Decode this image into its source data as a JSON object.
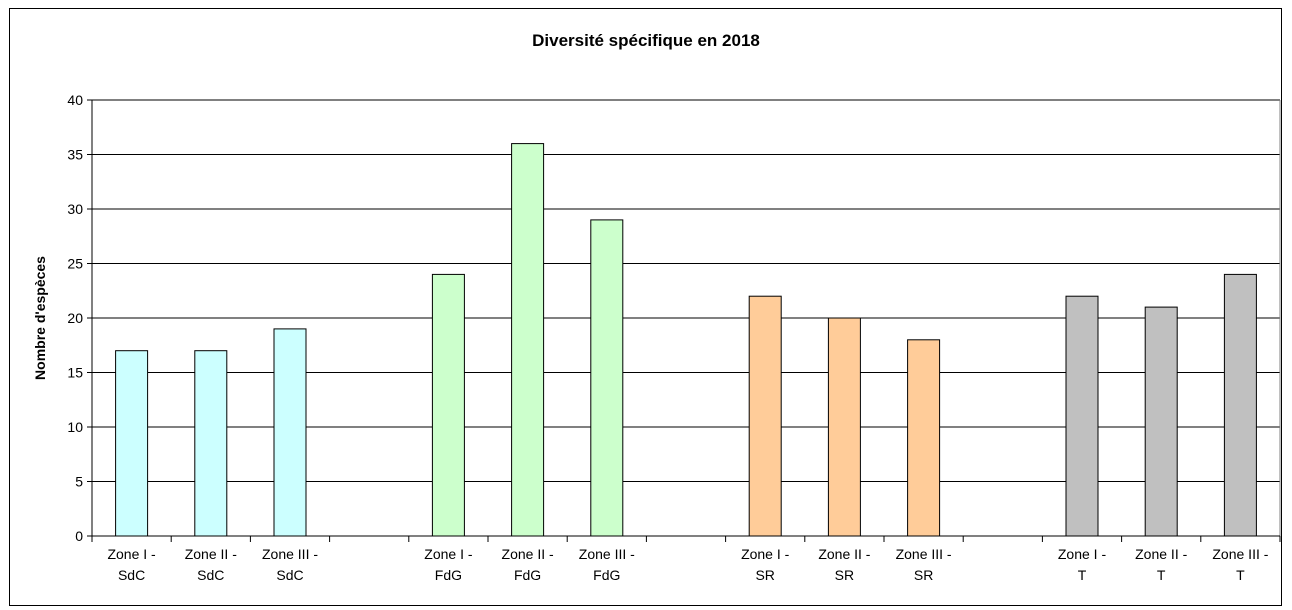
{
  "chart_data": {
    "type": "bar",
    "title": "Diversité spécifique en 2018",
    "xlabel": "",
    "ylabel": "Nombre d'espèces",
    "ylim": [
      0,
      40
    ],
    "yticks": [
      0,
      5,
      10,
      15,
      20,
      25,
      30,
      35,
      40
    ],
    "grid": true,
    "legend": "none",
    "categories": [
      [
        "Zone I -",
        "SdC"
      ],
      [
        "Zone II -",
        "SdC"
      ],
      [
        "Zone III -",
        "SdC"
      ],
      null,
      [
        "Zone I -",
        "FdG"
      ],
      [
        "Zone II -",
        "FdG"
      ],
      [
        "Zone III -",
        "FdG"
      ],
      null,
      [
        "Zone I -",
        "SR"
      ],
      [
        "Zone II -",
        "SR"
      ],
      [
        "Zone III -",
        "SR"
      ],
      null,
      [
        "Zone I -",
        "T"
      ],
      [
        "Zone II -",
        "T"
      ],
      [
        "Zone III -",
        "T"
      ]
    ],
    "values": [
      17,
      17,
      19,
      null,
      24,
      36,
      29,
      null,
      22,
      20,
      18,
      null,
      22,
      21,
      24
    ],
    "colors": [
      "#ccffff",
      "#ccffff",
      "#ccffff",
      null,
      "#ccffcc",
      "#ccffcc",
      "#ccffcc",
      null,
      "#ffcc99",
      "#ffcc99",
      "#ffcc99",
      null,
      "#c0c0c0",
      "#c0c0c0",
      "#c0c0c0"
    ]
  }
}
